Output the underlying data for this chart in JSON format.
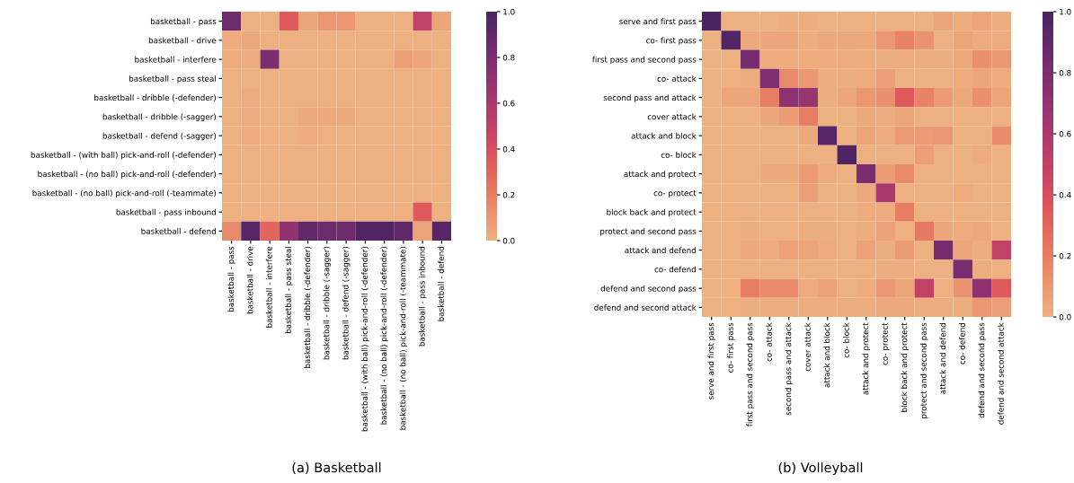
{
  "chart_data": [
    {
      "type": "heatmap",
      "title": "(a) Basketball",
      "categories": [
        "basketball - pass",
        "basketball - drive",
        "basketball - interfere",
        "basketball - pass steal",
        "basketball - dribble (-defender)",
        "basketball - dribble (-sagger)",
        "basketball - defend (-sagger)",
        "basketball - (with ball) pick-and-roll (-defender)",
        "basketball - (no ball) pick-and-roll (-defender)",
        "basketball - (no ball) pick-and-roll (-teammate)",
        "basketball - pass inbound",
        "basketball - defend"
      ],
      "y_categories": [
        "basketball - pass",
        "basketball - drive",
        "basketball - interfere",
        "basketball - pass steal",
        "basketball - dribble (-defender)",
        "basketball - dribble (-sagger)",
        "basketball - defend (-sagger)",
        "basketball - (with ball) pick-and-roll (-defender)",
        "basketball - (no ball) pick-and-roll (-defender)",
        "basketball - (no ball) pick-and-roll (-teammate)",
        "basketball - pass inbound",
        "basketball - defend"
      ],
      "cells": [
        [
          0.85,
          0,
          0,
          0.35,
          0.05,
          0.1,
          0.1,
          0,
          0,
          0,
          0.5,
          0.05
        ],
        [
          0.02,
          0.03,
          0,
          0,
          0,
          0,
          0,
          0,
          0,
          0,
          0,
          0
        ],
        [
          0.02,
          0.02,
          0.8,
          0,
          0,
          0,
          0,
          0,
          0,
          0.07,
          0.05,
          0
        ],
        [
          0,
          0,
          0,
          0,
          0,
          0,
          0,
          0,
          0,
          0,
          0,
          0
        ],
        [
          0,
          0.02,
          0,
          0,
          0,
          0,
          0,
          0,
          0,
          0,
          0,
          0
        ],
        [
          0,
          0.02,
          0,
          0,
          0.03,
          0.03,
          0.03,
          0,
          0,
          0,
          0,
          0
        ],
        [
          0,
          0.02,
          0,
          0,
          0.02,
          0,
          0,
          0,
          0,
          0,
          0,
          0
        ],
        [
          0,
          0,
          0,
          0,
          0,
          0,
          0,
          0,
          0,
          0,
          0,
          0
        ],
        [
          0,
          0,
          0,
          0,
          0,
          0,
          0,
          0,
          0,
          0,
          0,
          0
        ],
        [
          0,
          0,
          0,
          0,
          0,
          0,
          0,
          0,
          0,
          0,
          0,
          0
        ],
        [
          0,
          0,
          0,
          0,
          0,
          0,
          0,
          0,
          0,
          0,
          0.35,
          0
        ],
        [
          0.15,
          0.95,
          0.3,
          0.7,
          0.9,
          0.85,
          0.85,
          0.97,
          0.97,
          0.9,
          0.05,
          0.95
        ]
      ],
      "clim": [
        0,
        1
      ],
      "cticks": [
        {
          "value": 0,
          "label": "0.0"
        },
        {
          "value": 0.2,
          "label": "0.2"
        },
        {
          "value": 0.4,
          "label": "0.4"
        },
        {
          "value": 0.6,
          "label": "0.6"
        },
        {
          "value": 0.8,
          "label": "0.8"
        },
        {
          "value": 1,
          "label": "1.0"
        }
      ]
    },
    {
      "type": "heatmap",
      "title": "(b) Volleyball",
      "categories": [
        "serve and first pass",
        "co- first pass",
        "first pass and second pass",
        "co- attack",
        "second pass and attack",
        "cover attack",
        "attack and block",
        "co- block",
        "attack and protect",
        "co- protect",
        "block back and protect",
        "protect and second pass",
        "attack and defend",
        "co- defend",
        "defend and second pass",
        "defend and second attack"
      ],
      "y_categories": [
        "serve and first pass",
        "co- first pass",
        "first pass and second pass",
        "co- attack",
        "second pass and attack",
        "cover attack",
        "attack and block",
        "co- block",
        "attack and protect",
        "co- protect",
        "block back and protect",
        "protect and second pass",
        "attack and defend",
        "co- defend",
        "defend and second pass",
        "defend and second attack"
      ],
      "cells": [
        [
          1,
          0,
          0,
          0,
          0.01,
          0.01,
          0,
          0,
          0,
          0,
          0,
          0,
          0.05,
          0.02,
          0.05,
          0.01
        ],
        [
          0,
          0.97,
          0.03,
          0.04,
          0.04,
          0.01,
          0.03,
          0.03,
          0.03,
          0.1,
          0.18,
          0.12,
          0,
          0.05,
          0.02,
          0.02
        ],
        [
          0,
          0,
          0.82,
          0.02,
          0.02,
          0.02,
          0.02,
          0.02,
          0.01,
          0.01,
          0.01,
          0.01,
          0.01,
          0.03,
          0.13,
          0.1
        ],
        [
          0,
          0,
          0.01,
          0.78,
          0.15,
          0.1,
          0.01,
          0.01,
          0.02,
          0.07,
          0,
          0,
          0,
          0.02,
          0.04,
          0.02
        ],
        [
          0,
          0.05,
          0.05,
          0.2,
          0.72,
          0.68,
          0.01,
          0.05,
          0.1,
          0.13,
          0.35,
          0.18,
          0.08,
          0.03,
          0.13,
          0.05
        ],
        [
          0,
          0,
          0,
          0.04,
          0.08,
          0.2,
          0,
          0,
          0.03,
          0.02,
          0.04,
          0,
          0,
          0,
          0,
          0
        ],
        [
          0,
          0,
          0,
          0,
          0,
          0.03,
          0.95,
          0,
          0.05,
          0.02,
          0.08,
          0.08,
          0.1,
          0,
          0,
          0.15
        ],
        [
          0,
          0,
          0,
          0,
          0,
          0,
          0,
          0.98,
          0,
          0,
          0,
          0.07,
          0,
          0,
          0.02,
          0
        ],
        [
          0,
          0,
          0,
          0.03,
          0.03,
          0.08,
          0.02,
          0,
          0.8,
          0.08,
          0.15,
          0,
          0,
          0,
          0,
          0
        ],
        [
          0,
          0,
          0,
          0,
          0,
          0.07,
          0,
          0,
          0.03,
          0.6,
          0,
          0,
          0,
          0.02,
          0,
          0
        ],
        [
          0,
          0,
          0,
          0,
          0,
          0,
          0,
          0,
          0.02,
          0.02,
          0.2,
          0,
          0,
          0,
          0,
          0
        ],
        [
          0,
          0,
          0.01,
          0,
          0,
          0.01,
          0.01,
          0,
          0.01,
          0.06,
          0,
          0.22,
          0.04,
          0.02,
          0.03,
          0
        ],
        [
          0,
          0,
          0.03,
          0.02,
          0.06,
          0.05,
          0.02,
          0,
          0.06,
          0.01,
          0.08,
          0,
          0.82,
          0.04,
          0.01,
          0.5
        ],
        [
          0,
          0,
          0,
          0,
          0,
          0,
          0,
          0,
          0,
          0.01,
          0.01,
          0,
          0,
          0.8,
          0.01,
          0
        ],
        [
          0,
          0,
          0.2,
          0.15,
          0.15,
          0.02,
          0.06,
          0,
          0.02,
          0.1,
          0.05,
          0.5,
          0,
          0.12,
          0.72,
          0.35
        ],
        [
          0,
          0,
          0.01,
          0.01,
          0.01,
          0.01,
          0.01,
          0.01,
          0.01,
          0.03,
          0.03,
          0.01,
          0.01,
          0.01,
          0.1,
          0.07
        ]
      ],
      "clim": [
        0,
        1
      ],
      "cticks": [
        {
          "value": 0,
          "label": "0.0"
        },
        {
          "value": 0.2,
          "label": "0.2"
        },
        {
          "value": 0.4,
          "label": "0.4"
        },
        {
          "value": 0.6,
          "label": "0.6"
        },
        {
          "value": 0.8,
          "label": "0.8"
        },
        {
          "value": 1,
          "label": "1.0"
        }
      ]
    }
  ]
}
